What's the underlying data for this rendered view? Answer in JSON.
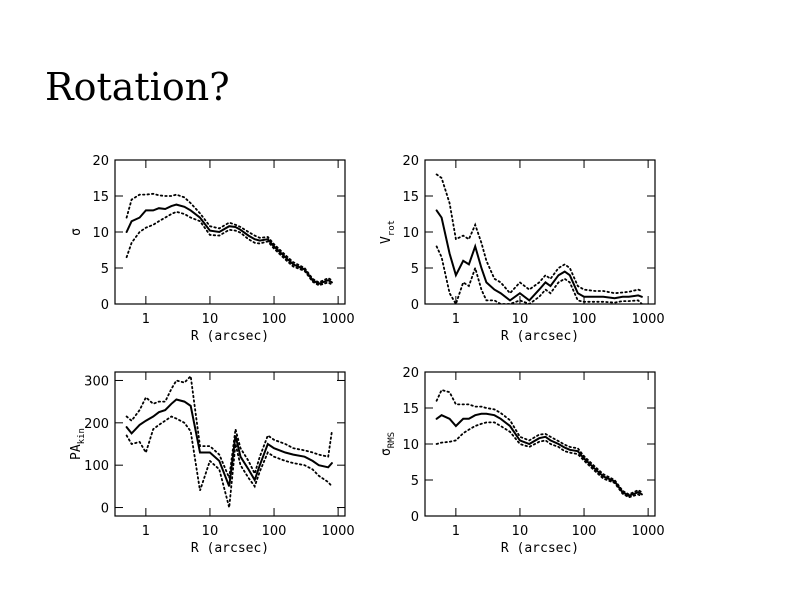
{
  "title": "Rotation?",
  "chart_data": [
    {
      "type": "line",
      "xlabel": "R (arcsec)",
      "ylabel": "σ",
      "xscale": "log",
      "xlim": [
        0.33,
        1280
      ],
      "ylim": [
        0,
        20
      ],
      "xticks": [
        1,
        10,
        100,
        1000
      ],
      "yticks": [
        0,
        5,
        10,
        15,
        20
      ],
      "x": [
        0.5,
        0.6,
        0.8,
        1,
        1.3,
        1.6,
        2,
        2.5,
        3,
        4,
        5,
        7,
        10,
        14,
        20,
        25,
        30,
        40,
        50,
        60,
        80,
        100,
        150,
        200,
        300,
        400,
        500,
        700,
        800
      ],
      "series": [
        {
          "color": "#000000",
          "dash": "solid",
          "values": [
            10,
            11.5,
            12,
            13,
            13,
            13.3,
            13.2,
            13.6,
            13.8,
            13.5,
            13,
            12,
            10.2,
            10,
            10.8,
            10.7,
            10.3,
            9.5,
            9,
            8.8,
            9,
            8,
            6.5,
            5.5,
            4.8,
            3.3,
            2.8,
            3.3,
            3
          ]
        },
        {
          "color": "#000000",
          "dash": "dotted",
          "values": [
            12,
            14.5,
            15.2,
            15.2,
            15.3,
            15.1,
            15,
            15,
            15.2,
            14.8,
            14,
            12.6,
            10.8,
            10.5,
            11.3,
            11,
            10.7,
            10,
            9.5,
            9.2,
            9.3,
            8.3,
            6.8,
            5.8,
            5,
            3.5,
            3,
            3.6,
            3.3
          ]
        },
        {
          "color": "#000000",
          "dash": "dotted",
          "values": [
            6.5,
            8.5,
            10,
            10.6,
            11,
            11.5,
            12,
            12.5,
            12.8,
            12.5,
            12,
            11.5,
            9.6,
            9.5,
            10.3,
            10.2,
            9.9,
            9,
            8.5,
            8.4,
            8.7,
            7.7,
            6.2,
            5.2,
            4.6,
            3.1,
            2.6,
            3,
            2.7
          ]
        }
      ]
    },
    {
      "type": "line",
      "xlabel": "R (arcsec)",
      "ylabel": "V",
      "ylabel_sub": "rot",
      "xscale": "log",
      "xlim": [
        0.33,
        1280
      ],
      "ylim": [
        0,
        20
      ],
      "xticks": [
        1,
        10,
        100,
        1000
      ],
      "yticks": [
        0,
        5,
        10,
        15,
        20
      ],
      "x": [
        0.5,
        0.6,
        0.8,
        1,
        1.3,
        1.6,
        2,
        2.5,
        3,
        4,
        5,
        7,
        10,
        14,
        20,
        25,
        30,
        40,
        50,
        60,
        80,
        100,
        150,
        200,
        300,
        400,
        500,
        700,
        800
      ],
      "series": [
        {
          "color": "#000000",
          "dash": "solid",
          "values": [
            13,
            12,
            7,
            4,
            6,
            5.5,
            8,
            5,
            3,
            2,
            1.5,
            0.5,
            1.5,
            0.5,
            2,
            3,
            2.5,
            4,
            4.5,
            4,
            1.5,
            1,
            1,
            1,
            0.8,
            1,
            1,
            1.2,
            1
          ]
        },
        {
          "color": "#000000",
          "dash": "dotted",
          "values": [
            18,
            17.5,
            14,
            9,
            9.5,
            9,
            11,
            8.5,
            6,
            3.5,
            3,
            1.5,
            3,
            2,
            3,
            4,
            3.5,
            5,
            5.5,
            5,
            2.5,
            2,
            1.8,
            1.8,
            1.5,
            1.6,
            1.7,
            2,
            1.8
          ]
        },
        {
          "color": "#000000",
          "dash": "dotted",
          "values": [
            8,
            6.5,
            1.5,
            0,
            3,
            2.5,
            5,
            2,
            0.5,
            0.5,
            0,
            0,
            0.5,
            0,
            1,
            2,
            1.5,
            3,
            3.5,
            3,
            0.5,
            0.3,
            0.3,
            0.3,
            0.2,
            0.4,
            0.4,
            0.5,
            0
          ]
        }
      ]
    },
    {
      "type": "line",
      "xlabel": "R (arcsec)",
      "ylabel": "PA",
      "ylabel_sub": "kin",
      "xscale": "log",
      "xlim": [
        0.33,
        1280
      ],
      "ylim": [
        -20,
        320
      ],
      "xticks": [
        1,
        10,
        100,
        1000
      ],
      "yticks": [
        0,
        100,
        200,
        300
      ],
      "x": [
        0.5,
        0.6,
        0.8,
        1,
        1.3,
        1.6,
        2,
        2.5,
        3,
        4,
        5,
        7,
        10,
        14,
        20,
        25,
        30,
        40,
        50,
        60,
        80,
        100,
        150,
        200,
        300,
        400,
        500,
        700,
        800
      ],
      "series": [
        {
          "color": "#000000",
          "dash": "solid",
          "values": [
            190,
            175,
            195,
            205,
            215,
            225,
            230,
            245,
            255,
            250,
            240,
            130,
            130,
            110,
            50,
            170,
            120,
            90,
            65,
            100,
            150,
            140,
            130,
            125,
            120,
            110,
            100,
            95,
            105
          ]
        },
        {
          "color": "#000000",
          "dash": "dotted",
          "values": [
            215,
            205,
            230,
            260,
            245,
            250,
            250,
            280,
            300,
            295,
            310,
            145,
            145,
            125,
            70,
            185,
            140,
            110,
            80,
            120,
            170,
            160,
            150,
            140,
            135,
            130,
            125,
            120,
            180
          ]
        },
        {
          "color": "#000000",
          "dash": "dotted",
          "values": [
            170,
            150,
            155,
            130,
            185,
            195,
            205,
            215,
            210,
            200,
            180,
            40,
            110,
            90,
            0,
            150,
            100,
            70,
            50,
            85,
            130,
            120,
            110,
            105,
            100,
            90,
            75,
            60,
            50
          ]
        }
      ]
    },
    {
      "type": "line",
      "xlabel": "R (arcsec)",
      "ylabel": "σ",
      "ylabel_sub": "RMS",
      "xscale": "log",
      "xlim": [
        0.33,
        1280
      ],
      "ylim": [
        0,
        20
      ],
      "xticks": [
        1,
        10,
        100,
        1000
      ],
      "yticks": [
        0,
        5,
        10,
        15,
        20
      ],
      "x": [
        0.5,
        0.6,
        0.8,
        1,
        1.3,
        1.6,
        2,
        2.5,
        3,
        4,
        5,
        7,
        10,
        14,
        20,
        25,
        30,
        40,
        50,
        60,
        80,
        100,
        150,
        200,
        300,
        400,
        500,
        700,
        800
      ],
      "series": [
        {
          "color": "#000000",
          "dash": "solid",
          "values": [
            13.5,
            14,
            13.5,
            12.5,
            13.5,
            13.5,
            14,
            14.2,
            14.2,
            14,
            13.5,
            12.5,
            10.5,
            10,
            10.8,
            11,
            10.5,
            10,
            9.5,
            9.2,
            9,
            8,
            6.5,
            5.5,
            4.8,
            3.3,
            2.8,
            3.3,
            3
          ]
        },
        {
          "color": "#000000",
          "dash": "dotted",
          "values": [
            16,
            17.5,
            17.2,
            15.5,
            15.5,
            15.5,
            15.2,
            15.2,
            15,
            14.8,
            14.3,
            13.3,
            11,
            10.5,
            11.3,
            11.4,
            11,
            10.4,
            9.9,
            9.6,
            9.4,
            8.3,
            6.8,
            5.8,
            5,
            3.5,
            3,
            3.6,
            3.3
          ]
        },
        {
          "color": "#000000",
          "dash": "dotted",
          "values": [
            10,
            10.2,
            10.3,
            10.5,
            11.5,
            12,
            12.5,
            12.8,
            13,
            13,
            12.5,
            11.7,
            10,
            9.6,
            10.3,
            10.5,
            10,
            9.6,
            9,
            8.8,
            8.6,
            7.7,
            6.2,
            5.2,
            4.6,
            3.1,
            2.6,
            3,
            2.7
          ]
        }
      ]
    }
  ]
}
